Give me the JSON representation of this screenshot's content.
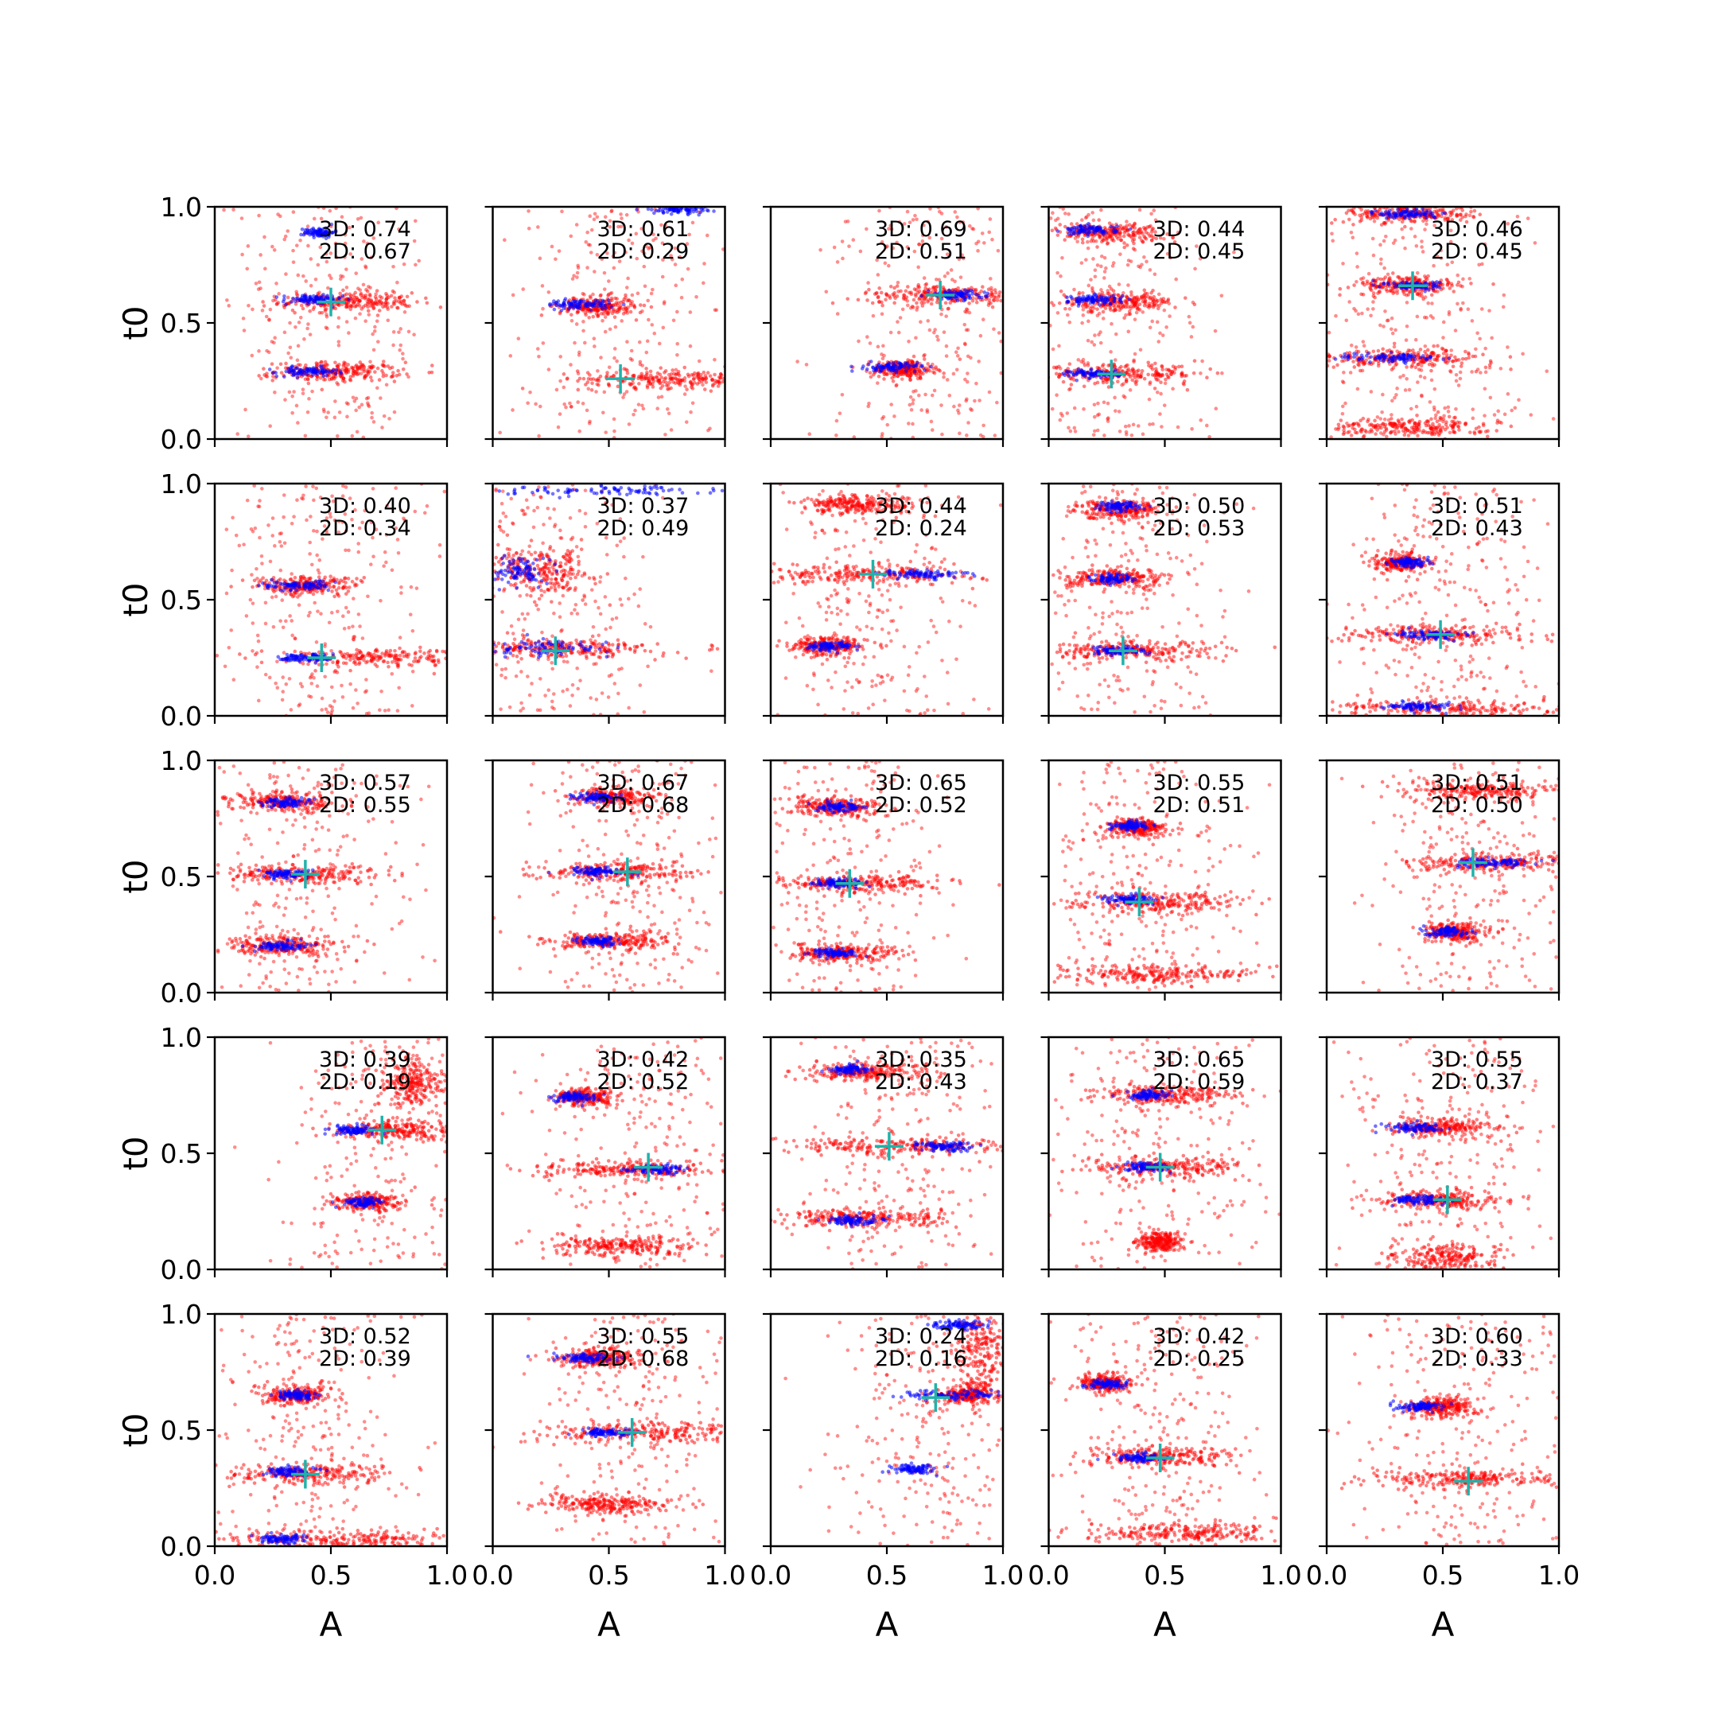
{
  "chart_data": {
    "type": "scatter",
    "layout": "5x5 grid",
    "xlabel": "A",
    "ylabel": "t0",
    "xlim": [
      0.0,
      1.0
    ],
    "ylim": [
      0.0,
      1.0
    ],
    "xticks": [
      "0.0",
      "0.5",
      "1.0"
    ],
    "yticks": [
      "0.0",
      "0.5",
      "1.0"
    ],
    "colors": {
      "series_red": "#ff0000",
      "series_blue": "#0000ff",
      "marker": "#20b2aa"
    },
    "panels": [
      {
        "ann3d": "3D: 0.74",
        "ann2d": "2D: 0.67",
        "marker": [
          0.5,
          0.59
        ],
        "red_clusters": [
          [
            0.57,
            0.59,
            0.32,
            0.02
          ],
          [
            0.53,
            0.29,
            0.3,
            0.02
          ]
        ],
        "blue_clusters": [
          [
            0.42,
            0.6,
            0.16,
            0.01
          ],
          [
            0.4,
            0.29,
            0.16,
            0.01
          ],
          [
            0.45,
            0.89,
            0.08,
            0.01
          ]
        ]
      },
      {
        "ann3d": "3D: 0.61",
        "ann2d": "2D: 0.29",
        "marker": [
          0.55,
          0.26
        ],
        "red_clusters": [
          [
            0.78,
            0.26,
            0.45,
            0.02
          ],
          [
            0.45,
            0.57,
            0.18,
            0.02
          ]
        ],
        "blue_clusters": [
          [
            0.38,
            0.58,
            0.18,
            0.01
          ],
          [
            0.8,
            0.99,
            0.15,
            0.01
          ]
        ]
      },
      {
        "ann3d": "3D: 0.69",
        "ann2d": "2D: 0.51",
        "marker": [
          0.73,
          0.62
        ],
        "red_clusters": [
          [
            0.75,
            0.62,
            0.4,
            0.02
          ],
          [
            0.57,
            0.3,
            0.15,
            0.02
          ]
        ],
        "blue_clusters": [
          [
            0.52,
            0.31,
            0.14,
            0.01
          ],
          [
            0.8,
            0.62,
            0.15,
            0.01
          ]
        ]
      },
      {
        "ann3d": "3D: 0.44",
        "ann2d": "2D: 0.45",
        "marker": [
          0.27,
          0.28
        ],
        "red_clusters": [
          [
            0.3,
            0.28,
            0.4,
            0.02
          ],
          [
            0.3,
            0.59,
            0.28,
            0.02
          ],
          [
            0.25,
            0.89,
            0.25,
            0.02
          ]
        ],
        "blue_clusters": [
          [
            0.2,
            0.6,
            0.14,
            0.01
          ],
          [
            0.2,
            0.28,
            0.14,
            0.01
          ],
          [
            0.18,
            0.9,
            0.14,
            0.01
          ]
        ]
      },
      {
        "ann3d": "3D: 0.46",
        "ann2d": "2D: 0.45",
        "marker": [
          0.37,
          0.66
        ],
        "red_clusters": [
          [
            0.35,
            0.66,
            0.25,
            0.02
          ],
          [
            0.32,
            0.35,
            0.45,
            0.02
          ],
          [
            0.35,
            0.05,
            0.4,
            0.02
          ],
          [
            0.35,
            0.97,
            0.3,
            0.02
          ]
        ],
        "blue_clusters": [
          [
            0.38,
            0.66,
            0.14,
            0.01
          ],
          [
            0.28,
            0.35,
            0.28,
            0.01
          ],
          [
            0.35,
            0.97,
            0.16,
            0.01
          ]
        ]
      },
      {
        "ann3d": "3D: 0.40",
        "ann2d": "2D: 0.34",
        "marker": [
          0.46,
          0.25
        ],
        "red_clusters": [
          [
            0.7,
            0.25,
            0.55,
            0.02
          ],
          [
            0.4,
            0.56,
            0.25,
            0.02
          ]
        ],
        "blue_clusters": [
          [
            0.35,
            0.56,
            0.18,
            0.01
          ],
          [
            0.4,
            0.25,
            0.15,
            0.01
          ]
        ]
      },
      {
        "ann3d": "3D: 0.37",
        "ann2d": "2D: 0.49",
        "marker": [
          0.27,
          0.28
        ],
        "red_clusters": [
          [
            0.3,
            0.29,
            0.45,
            0.02
          ],
          [
            0.2,
            0.62,
            0.25,
            0.05
          ]
        ],
        "blue_clusters": [
          [
            0.25,
            0.29,
            0.3,
            0.02
          ],
          [
            0.5,
            0.97,
            0.6,
            0.01
          ],
          [
            0.12,
            0.62,
            0.12,
            0.03
          ]
        ]
      },
      {
        "ann3d": "3D: 0.44",
        "ann2d": "2D: 0.24",
        "marker": [
          0.44,
          0.61
        ],
        "red_clusters": [
          [
            0.4,
            0.61,
            0.55,
            0.02
          ],
          [
            0.38,
            0.91,
            0.3,
            0.02
          ],
          [
            0.25,
            0.3,
            0.18,
            0.02
          ]
        ],
        "blue_clusters": [
          [
            0.65,
            0.61,
            0.25,
            0.01
          ],
          [
            0.25,
            0.3,
            0.12,
            0.01
          ]
        ]
      },
      {
        "ann3d": "3D: 0.50",
        "ann2d": "2D: 0.53",
        "marker": [
          0.32,
          0.28
        ],
        "red_clusters": [
          [
            0.35,
            0.28,
            0.45,
            0.02
          ],
          [
            0.3,
            0.59,
            0.25,
            0.02
          ],
          [
            0.3,
            0.89,
            0.2,
            0.02
          ]
        ],
        "blue_clusters": [
          [
            0.3,
            0.28,
            0.14,
            0.01
          ],
          [
            0.28,
            0.59,
            0.12,
            0.01
          ],
          [
            0.3,
            0.9,
            0.12,
            0.01
          ]
        ]
      },
      {
        "ann3d": "3D: 0.51",
        "ann2d": "2D: 0.43",
        "marker": [
          0.49,
          0.35
        ],
        "red_clusters": [
          [
            0.45,
            0.35,
            0.45,
            0.02
          ],
          [
            0.55,
            0.03,
            0.6,
            0.02
          ],
          [
            0.32,
            0.66,
            0.12,
            0.02
          ]
        ],
        "blue_clusters": [
          [
            0.45,
            0.35,
            0.18,
            0.01
          ],
          [
            0.35,
            0.66,
            0.1,
            0.01
          ],
          [
            0.4,
            0.04,
            0.18,
            0.01
          ]
        ]
      },
      {
        "ann3d": "3D: 0.57",
        "ann2d": "2D: 0.55",
        "marker": [
          0.39,
          0.51
        ],
        "red_clusters": [
          [
            0.35,
            0.51,
            0.4,
            0.02
          ],
          [
            0.28,
            0.2,
            0.3,
            0.02
          ],
          [
            0.3,
            0.82,
            0.25,
            0.02
          ]
        ],
        "blue_clusters": [
          [
            0.3,
            0.51,
            0.14,
            0.01
          ],
          [
            0.28,
            0.2,
            0.14,
            0.01
          ],
          [
            0.3,
            0.82,
            0.12,
            0.01
          ]
        ]
      },
      {
        "ann3d": "3D: 0.67",
        "ann2d": "2D: 0.68",
        "marker": [
          0.58,
          0.52
        ],
        "red_clusters": [
          [
            0.55,
            0.52,
            0.35,
            0.02
          ],
          [
            0.5,
            0.22,
            0.3,
            0.02
          ],
          [
            0.5,
            0.84,
            0.2,
            0.02
          ]
        ],
        "blue_clusters": [
          [
            0.45,
            0.52,
            0.14,
            0.01
          ],
          [
            0.45,
            0.22,
            0.12,
            0.01
          ],
          [
            0.45,
            0.84,
            0.12,
            0.01
          ]
        ]
      },
      {
        "ann3d": "3D: 0.65",
        "ann2d": "2D: 0.52",
        "marker": [
          0.34,
          0.47
        ],
        "red_clusters": [
          [
            0.38,
            0.47,
            0.4,
            0.02
          ],
          [
            0.3,
            0.17,
            0.3,
            0.02
          ],
          [
            0.28,
            0.8,
            0.22,
            0.02
          ]
        ],
        "blue_clusters": [
          [
            0.3,
            0.47,
            0.14,
            0.01
          ],
          [
            0.28,
            0.17,
            0.12,
            0.01
          ],
          [
            0.3,
            0.8,
            0.12,
            0.01
          ]
        ]
      },
      {
        "ann3d": "3D: 0.55",
        "ann2d": "2D: 0.51",
        "marker": [
          0.39,
          0.39
        ],
        "red_clusters": [
          [
            0.45,
            0.39,
            0.4,
            0.02
          ],
          [
            0.45,
            0.08,
            0.45,
            0.02
          ],
          [
            0.38,
            0.71,
            0.15,
            0.02
          ]
        ],
        "blue_clusters": [
          [
            0.35,
            0.4,
            0.14,
            0.01
          ],
          [
            0.35,
            0.72,
            0.1,
            0.01
          ]
        ]
      },
      {
        "ann3d": "3D: 0.51",
        "ann2d": "2D: 0.50",
        "marker": [
          0.63,
          0.56
        ],
        "red_clusters": [
          [
            0.72,
            0.56,
            0.4,
            0.02
          ],
          [
            0.7,
            0.87,
            0.4,
            0.02
          ],
          [
            0.55,
            0.26,
            0.15,
            0.02
          ]
        ],
        "blue_clusters": [
          [
            0.52,
            0.26,
            0.12,
            0.01
          ],
          [
            0.7,
            0.56,
            0.2,
            0.01
          ]
        ]
      },
      {
        "ann3d": "3D: 0.39",
        "ann2d": "2D: 0.19",
        "marker": [
          0.72,
          0.6
        ],
        "red_clusters": [
          [
            0.8,
            0.6,
            0.3,
            0.02
          ],
          [
            0.65,
            0.29,
            0.15,
            0.02
          ],
          [
            0.85,
            0.8,
            0.15,
            0.05
          ]
        ],
        "blue_clusters": [
          [
            0.6,
            0.6,
            0.12,
            0.01
          ],
          [
            0.63,
            0.29,
            0.1,
            0.01
          ]
        ]
      },
      {
        "ann3d": "3D: 0.42",
        "ann2d": "2D: 0.52",
        "marker": [
          0.67,
          0.44
        ],
        "red_clusters": [
          [
            0.55,
            0.43,
            0.45,
            0.02
          ],
          [
            0.55,
            0.1,
            0.35,
            0.02
          ],
          [
            0.4,
            0.74,
            0.15,
            0.02
          ]
        ],
        "blue_clusters": [
          [
            0.35,
            0.74,
            0.12,
            0.01
          ],
          [
            0.7,
            0.43,
            0.14,
            0.01
          ]
        ]
      },
      {
        "ann3d": "3D: 0.35",
        "ann2d": "2D: 0.43",
        "marker": [
          0.51,
          0.53
        ],
        "red_clusters": [
          [
            0.55,
            0.53,
            0.55,
            0.02
          ],
          [
            0.4,
            0.22,
            0.35,
            0.02
          ],
          [
            0.4,
            0.85,
            0.3,
            0.02
          ]
        ],
        "blue_clusters": [
          [
            0.75,
            0.53,
            0.15,
            0.01
          ],
          [
            0.35,
            0.21,
            0.15,
            0.01
          ],
          [
            0.35,
            0.86,
            0.1,
            0.01
          ]
        ]
      },
      {
        "ann3d": "3D: 0.65",
        "ann2d": "2D: 0.59",
        "marker": [
          0.48,
          0.44
        ],
        "red_clusters": [
          [
            0.5,
            0.44,
            0.4,
            0.02
          ],
          [
            0.5,
            0.75,
            0.3,
            0.02
          ],
          [
            0.48,
            0.12,
            0.1,
            0.02
          ]
        ],
        "blue_clusters": [
          [
            0.42,
            0.44,
            0.14,
            0.01
          ],
          [
            0.42,
            0.75,
            0.12,
            0.01
          ]
        ]
      },
      {
        "ann3d": "3D: 0.55",
        "ann2d": "2D: 0.37",
        "marker": [
          0.52,
          0.3
        ],
        "red_clusters": [
          [
            0.5,
            0.3,
            0.3,
            0.02
          ],
          [
            0.5,
            0.61,
            0.25,
            0.02
          ],
          [
            0.5,
            0.05,
            0.25,
            0.03
          ]
        ],
        "blue_clusters": [
          [
            0.4,
            0.3,
            0.14,
            0.01
          ],
          [
            0.38,
            0.61,
            0.14,
            0.01
          ]
        ]
      },
      {
        "ann3d": "3D: 0.52",
        "ann2d": "2D: 0.39",
        "marker": [
          0.39,
          0.31
        ],
        "red_clusters": [
          [
            0.42,
            0.31,
            0.4,
            0.02
          ],
          [
            0.55,
            0.03,
            0.55,
            0.02
          ],
          [
            0.35,
            0.65,
            0.15,
            0.02
          ]
        ],
        "blue_clusters": [
          [
            0.32,
            0.32,
            0.14,
            0.01
          ],
          [
            0.35,
            0.65,
            0.12,
            0.01
          ],
          [
            0.3,
            0.03,
            0.12,
            0.01
          ]
        ]
      },
      {
        "ann3d": "3D: 0.55",
        "ann2d": "2D: 0.68",
        "marker": [
          0.6,
          0.49
        ],
        "red_clusters": [
          [
            0.65,
            0.49,
            0.5,
            0.02
          ],
          [
            0.5,
            0.18,
            0.3,
            0.02
          ],
          [
            0.45,
            0.81,
            0.2,
            0.02
          ]
        ],
        "blue_clusters": [
          [
            0.4,
            0.81,
            0.15,
            0.01
          ],
          [
            0.5,
            0.49,
            0.15,
            0.01
          ]
        ]
      },
      {
        "ann3d": "3D: 0.24",
        "ann2d": "2D: 0.16",
        "marker": [
          0.71,
          0.64
        ],
        "red_clusters": [
          [
            0.9,
            0.85,
            0.12,
            0.1
          ],
          [
            0.85,
            0.65,
            0.15,
            0.02
          ]
        ],
        "blue_clusters": [
          [
            0.78,
            0.65,
            0.25,
            0.01
          ],
          [
            0.62,
            0.33,
            0.12,
            0.01
          ],
          [
            0.8,
            0.95,
            0.15,
            0.01
          ]
        ]
      },
      {
        "ann3d": "3D: 0.42",
        "ann2d": "2D: 0.25",
        "marker": [
          0.48,
          0.38
        ],
        "red_clusters": [
          [
            0.5,
            0.38,
            0.35,
            0.02
          ],
          [
            0.6,
            0.06,
            0.5,
            0.02
          ],
          [
            0.25,
            0.7,
            0.12,
            0.02
          ]
        ],
        "blue_clusters": [
          [
            0.4,
            0.38,
            0.14,
            0.01
          ],
          [
            0.25,
            0.7,
            0.1,
            0.01
          ]
        ]
      },
      {
        "ann3d": "3D: 0.60",
        "ann2d": "2D: 0.33",
        "marker": [
          0.61,
          0.28
        ],
        "red_clusters": [
          [
            0.6,
            0.29,
            0.45,
            0.02
          ],
          [
            0.5,
            0.6,
            0.15,
            0.02
          ]
        ],
        "blue_clusters": [
          [
            0.4,
            0.6,
            0.14,
            0.01
          ]
        ]
      }
    ]
  }
}
